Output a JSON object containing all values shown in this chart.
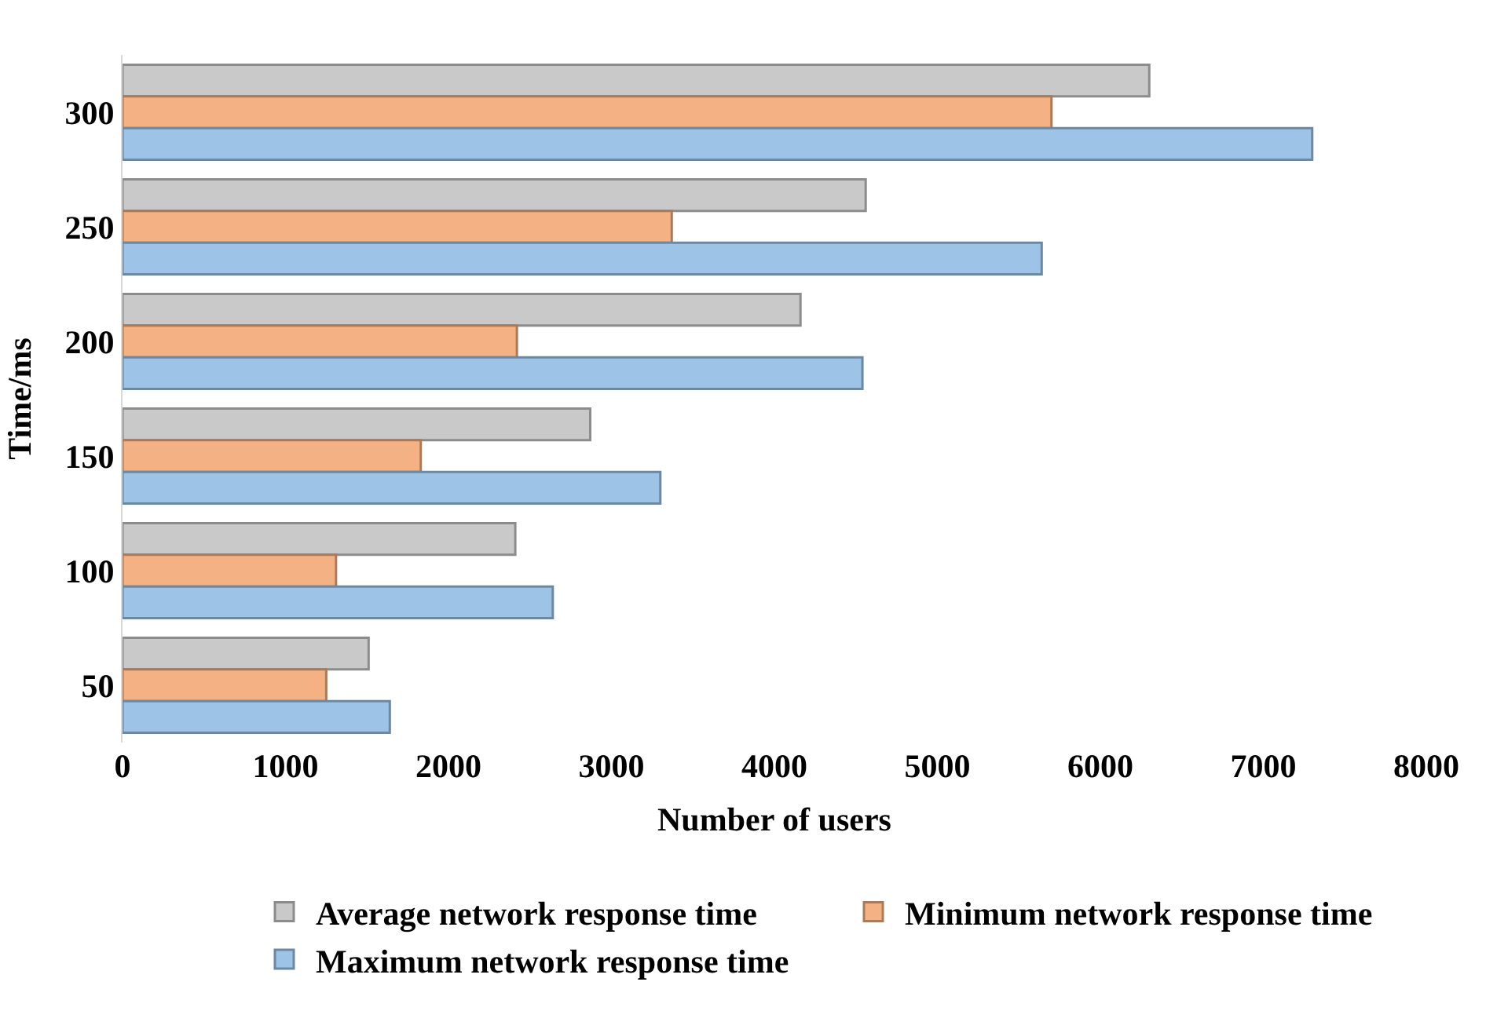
{
  "chart_data": {
    "type": "bar",
    "orientation": "horizontal",
    "xlabel": "Number of users",
    "ylabel": "Time/ms",
    "categories": [
      "300",
      "250",
      "200",
      "150",
      "100",
      "50"
    ],
    "series": [
      {
        "name": "Average network response time",
        "color": "#c9c9c9",
        "values": [
          6300,
          4560,
          4160,
          2870,
          2410,
          1510
        ]
      },
      {
        "name": "Minimum network response time",
        "color": "#f4b183",
        "values": [
          5700,
          3370,
          2420,
          1830,
          1310,
          1250
        ]
      },
      {
        "name": "Maximum network response time",
        "color": "#9dc3e6",
        "values": [
          7300,
          5640,
          4540,
          3300,
          2640,
          1640
        ]
      }
    ],
    "xlim": [
      0,
      8000
    ],
    "xticks": [
      0,
      1000,
      2000,
      3000,
      4000,
      5000,
      6000,
      7000,
      8000
    ],
    "legend": "bottom"
  }
}
